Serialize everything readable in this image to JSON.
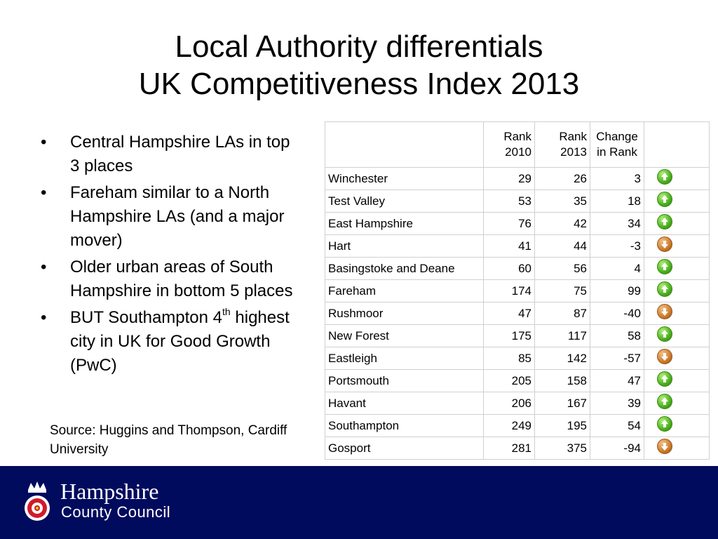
{
  "slide": {
    "title_line1": "Local Authority differentials",
    "title_line2": "UK Competitiveness Index 2013"
  },
  "bullets": {
    "b1": "Central Hampshire LAs in top 3 places",
    "b2": "Fareham similar to a North Hampshire LAs (and a major mover)",
    "b3": "Older urban areas of South Hampshire in bottom 5 places",
    "b4_pre": "BUT Southampton 4",
    "b4_sup": "th",
    "b4_post": " highest city in UK for Good Growth (PwC)",
    "bullet_char": "•"
  },
  "source": "Source: Huggins and Thompson, Cardiff University",
  "table": {
    "headers": {
      "rank2010_a": "Rank",
      "rank2010_b": "2010",
      "rank2013_a": "Rank",
      "rank2013_b": "2013",
      "change_a": "Change",
      "change_b": "in Rank"
    },
    "rows": [
      {
        "name": "Winchester",
        "r2010": "29",
        "r2013": "26",
        "change": "3",
        "trend": "up"
      },
      {
        "name": "Test Valley",
        "r2010": "53",
        "r2013": "35",
        "change": "18",
        "trend": "up"
      },
      {
        "name": "East Hampshire",
        "r2010": "76",
        "r2013": "42",
        "change": "34",
        "trend": "up"
      },
      {
        "name": "Hart",
        "r2010": "41",
        "r2013": "44",
        "change": "-3",
        "trend": "down"
      },
      {
        "name": "Basingstoke and Deane",
        "r2010": "60",
        "r2013": "56",
        "change": "4",
        "trend": "up"
      },
      {
        "name": "Fareham",
        "r2010": "174",
        "r2013": "75",
        "change": "99",
        "trend": "up"
      },
      {
        "name": "Rushmoor",
        "r2010": "47",
        "r2013": "87",
        "change": "-40",
        "trend": "down"
      },
      {
        "name": "New Forest",
        "r2010": "175",
        "r2013": "117",
        "change": "58",
        "trend": "up"
      },
      {
        "name": "Eastleigh",
        "r2010": "85",
        "r2013": "142",
        "change": "-57",
        "trend": "down"
      },
      {
        "name": "Portsmouth",
        "r2010": "205",
        "r2013": "158",
        "change": "47",
        "trend": "up"
      },
      {
        "name": "Havant",
        "r2010": "206",
        "r2013": "167",
        "change": "39",
        "trend": "up"
      },
      {
        "name": "Southampton",
        "r2010": "249",
        "r2013": "195",
        "change": "54",
        "trend": "up"
      },
      {
        "name": "Gosport",
        "r2010": "281",
        "r2013": "375",
        "change": "-94",
        "trend": "down"
      }
    ]
  },
  "footer": {
    "brand_line1": "Hampshire",
    "brand_line2": "County Council",
    "background_color": "#000b5e"
  },
  "icons": {
    "up": "arrow-up-circle-icon",
    "down": "arrow-down-circle-icon",
    "crest": "hampshire-rose-crest-icon"
  }
}
